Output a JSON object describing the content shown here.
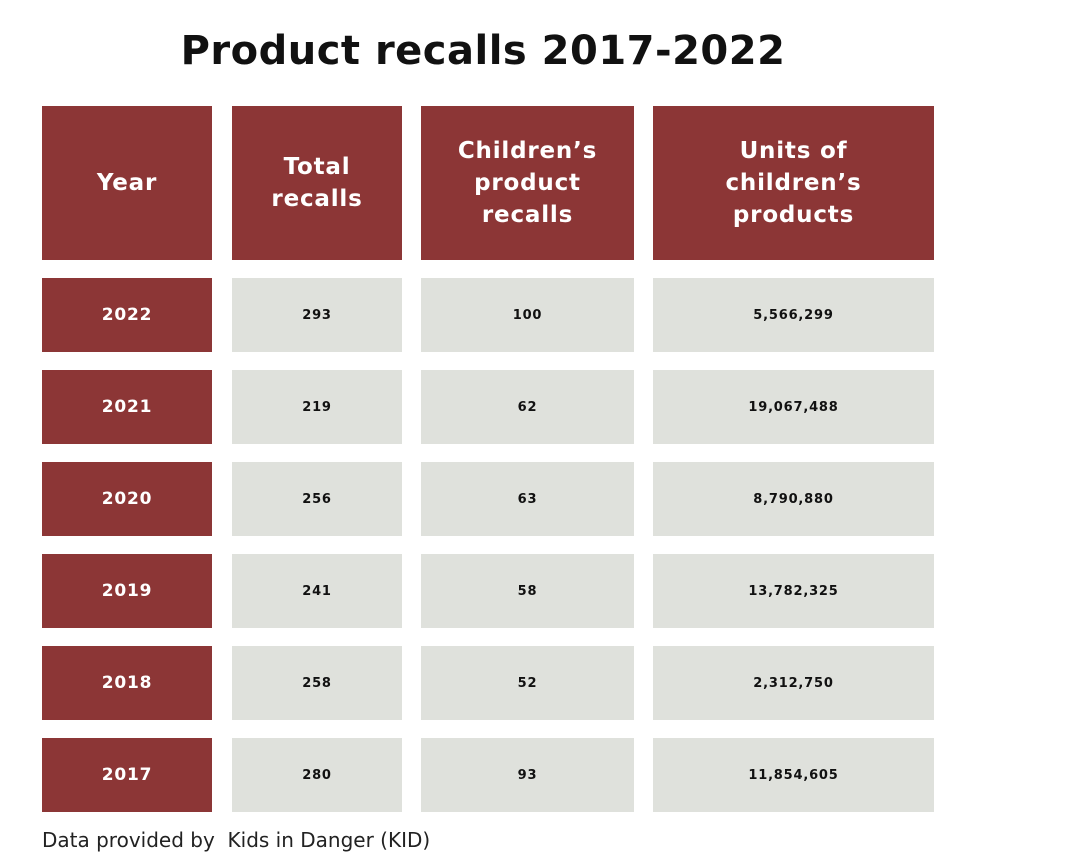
{
  "colors": {
    "header_bg": "#8c3636",
    "body_bg": "#dfe1dc",
    "header_text": "#ffffff",
    "body_text": "#111111"
  },
  "chart_data": {
    "type": "table",
    "title": "Product recalls 2017-2022",
    "columns": [
      "Year",
      "Total\nrecalls",
      "Children’s\nproduct\nrecalls",
      "Units of\nchildren’s\nproducts"
    ],
    "rows": [
      [
        "2022",
        "293",
        "100",
        "5,566,299"
      ],
      [
        "2021",
        "219",
        "62",
        "19,067,488"
      ],
      [
        "2020",
        "256",
        "63",
        "8,790,880"
      ],
      [
        "2019",
        "241",
        "58",
        "13,782,325"
      ],
      [
        "2018",
        "258",
        "52",
        "2,312,750"
      ],
      [
        "2017",
        "280",
        "93",
        "11,854,605"
      ]
    ],
    "source": "Data provided by  Kids in Danger (KID)"
  }
}
